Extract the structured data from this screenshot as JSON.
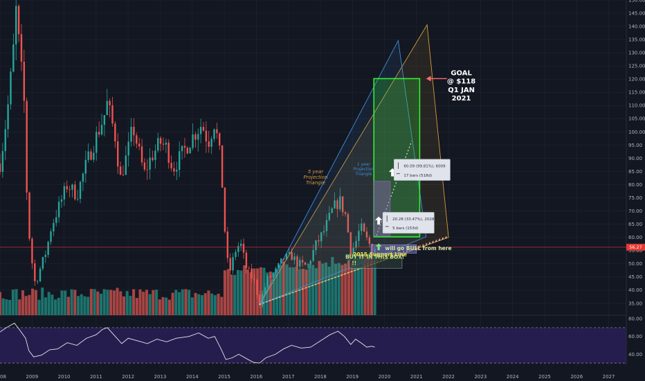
{
  "colors": {
    "background": "#131722",
    "grid": "#1f2330",
    "bull": "#26a69a",
    "bear": "#ef5350",
    "volume_bull": "#1f7d75",
    "volume_bear": "#b84a48",
    "projection5": "#d49a3a",
    "projection1": "#3f8fd6",
    "goal_box": "#33ee33",
    "small_box": "#8a5fb0",
    "rsi_line": "#e8e8e8",
    "rsi_band": "#2a1e57",
    "current_price_badge": "#e53935"
  },
  "chart_data": [
    {
      "type": "candlestick",
      "x_range": [
        2008.0,
        2027.55
      ],
      "ylim": [
        30.5,
        150.0
      ],
      "y_scale": "linear",
      "grid": true,
      "x_ticks": [
        "2008",
        "2009",
        "2010",
        "2011",
        "2012",
        "2013",
        "2014",
        "2015",
        "2016",
        "2017",
        "2018",
        "2019",
        "2020",
        "2021",
        "2022",
        "2023",
        "2024",
        "2025",
        "2026",
        "2027"
      ],
      "y_ticks": [
        "35.00",
        "40.00",
        "45.00",
        "50.00",
        "55.00",
        "60.00",
        "65.00",
        "70.00",
        "75.00",
        "80.00",
        "85.00",
        "90.00",
        "95.00",
        "100.00",
        "105.00",
        "110.00",
        "115.00",
        "120.00",
        "125.00",
        "130.00",
        "135.00",
        "140.00",
        "145.00",
        "150.00"
      ],
      "current_price": {
        "value": 56.27,
        "label": "56.27"
      },
      "anchors": [
        [
          2008.0,
          88
        ],
        [
          2008.1,
          96
        ],
        [
          2008.25,
          110
        ],
        [
          2008.4,
          128
        ],
        [
          2008.5,
          146
        ],
        [
          2008.6,
          132
        ],
        [
          2008.75,
          112
        ],
        [
          2008.85,
          72
        ],
        [
          2008.95,
          55
        ],
        [
          2009.1,
          42
        ],
        [
          2009.25,
          48
        ],
        [
          2009.45,
          55
        ],
        [
          2009.6,
          64
        ],
        [
          2009.85,
          72
        ],
        [
          2010.1,
          80
        ],
        [
          2010.4,
          76
        ],
        [
          2010.7,
          88
        ],
        [
          2011.0,
          98
        ],
        [
          2011.25,
          106
        ],
        [
          2011.35,
          111
        ],
        [
          2011.6,
          98
        ],
        [
          2011.75,
          82
        ],
        [
          2012.0,
          93
        ],
        [
          2012.15,
          102
        ],
        [
          2012.5,
          84
        ],
        [
          2012.7,
          90
        ],
        [
          2013.0,
          96
        ],
        [
          2013.2,
          94
        ],
        [
          2013.4,
          86
        ],
        [
          2013.7,
          92
        ],
        [
          2014.0,
          98
        ],
        [
          2014.3,
          103
        ],
        [
          2014.5,
          96
        ],
        [
          2014.7,
          104
        ],
        [
          2014.85,
          92
        ],
        [
          2014.95,
          78
        ],
        [
          2015.05,
          56
        ],
        [
          2015.15,
          46
        ],
        [
          2015.35,
          55
        ],
        [
          2015.5,
          58
        ],
        [
          2015.7,
          48
        ],
        [
          2015.95,
          43
        ],
        [
          2016.1,
          35
        ],
        [
          2016.35,
          44
        ],
        [
          2016.6,
          47
        ],
        [
          2016.85,
          52
        ],
        [
          2017.1,
          53
        ],
        [
          2017.3,
          50
        ],
        [
          2017.6,
          49
        ],
        [
          2017.85,
          57
        ],
        [
          2018.1,
          62
        ],
        [
          2018.4,
          71
        ],
        [
          2018.6,
          74
        ],
        [
          2018.8,
          68
        ],
        [
          2018.95,
          54
        ],
        [
          2019.1,
          58
        ],
        [
          2019.25,
          64
        ],
        [
          2019.4,
          60
        ],
        [
          2019.6,
          56
        ],
        [
          2019.7,
          56.27
        ]
      ],
      "volume_x_range": [
        2008.0,
        2019.7
      ],
      "annotations": [
        {
          "text": "GOAL",
          "x": 2022.4,
          "y": 121.5
        },
        {
          "text": "@ $118",
          "x": 2022.4,
          "y": 118.3
        },
        {
          "text": "Q1 JAN",
          "x": 2022.4,
          "y": 115.1
        },
        {
          "text": "2021",
          "x": 2022.4,
          "y": 111.9
        },
        {
          "text": "5 year",
          "x": 2017.85,
          "y": 84.4
        },
        {
          "text": "Projection",
          "x": 2017.85,
          "y": 82.3
        },
        {
          "text": "Triangle",
          "x": 2017.85,
          "y": 80.2
        },
        {
          "text": "1 year",
          "x": 2019.35,
          "y": 87.2
        },
        {
          "text": "Projection",
          "x": 2019.35,
          "y": 85.4
        },
        {
          "text": "Triangle",
          "x": 2019.35,
          "y": 83.6
        },
        {
          "text": "will go BULL from here",
          "x": 2020.02,
          "y": 55.2
        },
        {
          "text": "2015 Support Line",
          "x": 2019.02,
          "y": 52.8
        },
        {
          "text": "BUY IT IN THIS BOX!",
          "x": 2019.7,
          "y": 51.9
        },
        {
          "text": "!!",
          "x": 2018.98,
          "y": 49.5
        }
      ],
      "measure_boxes": [
        {
          "price_change": "60.09 (99.81%), 6009",
          "bars": "17 bars (518d)"
        },
        {
          "price_change": "20.28 (33.47%), 2028",
          "bars": "5 bars (153d)"
        }
      ],
      "goal_box": {
        "x_range": [
          2019.67,
          2021.1
        ],
        "y_range": [
          60.2,
          120.2
        ]
      },
      "small_box": {
        "x_range": [
          2019.67,
          2020.18
        ],
        "y_range": [
          60.5,
          81.3
        ]
      },
      "projection_5yr": [
        [
          2016.1,
          34.6
        ],
        [
          2021.33,
          140.6
        ],
        [
          2022.0,
          60.0
        ]
      ],
      "projection_1yr": [
        [
          2016.1,
          34.6
        ],
        [
          2020.43,
          134.6
        ],
        [
          2021.3,
          60.2
        ]
      ],
      "dotted_lines": [
        {
          "from": [
            2016.1,
            34.6
          ],
          "to": [
            2022.0,
            60.2
          ]
        },
        {
          "from": [
            2019.35,
            49.5
          ],
          "to": [
            2022.0,
            60.5
          ]
        },
        {
          "from": [
            2019.75,
            60.7
          ],
          "to": [
            2020.85,
            96.5
          ]
        }
      ]
    },
    {
      "type": "line",
      "name": "",
      "ylim": [
        27,
        84
      ],
      "y_ticks": [
        "40.00",
        "60.00",
        "80.00"
      ],
      "band": [
        30,
        70
      ],
      "values": [
        [
          2008.0,
          65
        ],
        [
          2008.2,
          70
        ],
        [
          2008.45,
          75
        ],
        [
          2008.6,
          68
        ],
        [
          2008.8,
          58
        ],
        [
          2008.9,
          44
        ],
        [
          2009.05,
          37
        ],
        [
          2009.3,
          39
        ],
        [
          2009.55,
          45
        ],
        [
          2009.8,
          46
        ],
        [
          2010.1,
          53
        ],
        [
          2010.4,
          50
        ],
        [
          2010.7,
          58
        ],
        [
          2011.0,
          62
        ],
        [
          2011.2,
          68
        ],
        [
          2011.35,
          70
        ],
        [
          2011.6,
          60
        ],
        [
          2011.8,
          52
        ],
        [
          2012.0,
          58
        ],
        [
          2012.3,
          55
        ],
        [
          2012.6,
          52
        ],
        [
          2012.9,
          57
        ],
        [
          2013.2,
          54
        ],
        [
          2013.5,
          58
        ],
        [
          2013.9,
          60
        ],
        [
          2014.2,
          64
        ],
        [
          2014.5,
          58
        ],
        [
          2014.7,
          60
        ],
        [
          2014.9,
          46
        ],
        [
          2015.05,
          34
        ],
        [
          2015.25,
          36
        ],
        [
          2015.45,
          40
        ],
        [
          2015.7,
          35
        ],
        [
          2015.9,
          31
        ],
        [
          2016.1,
          30
        ],
        [
          2016.3,
          36
        ],
        [
          2016.6,
          40
        ],
        [
          2016.85,
          46
        ],
        [
          2017.1,
          50
        ],
        [
          2017.4,
          47
        ],
        [
          2017.7,
          48
        ],
        [
          2018.0,
          55
        ],
        [
          2018.3,
          62
        ],
        [
          2018.55,
          66
        ],
        [
          2018.75,
          60
        ],
        [
          2018.95,
          51
        ],
        [
          2019.1,
          57
        ],
        [
          2019.3,
          52
        ],
        [
          2019.45,
          48
        ],
        [
          2019.6,
          49
        ],
        [
          2019.7,
          48
        ]
      ]
    }
  ]
}
